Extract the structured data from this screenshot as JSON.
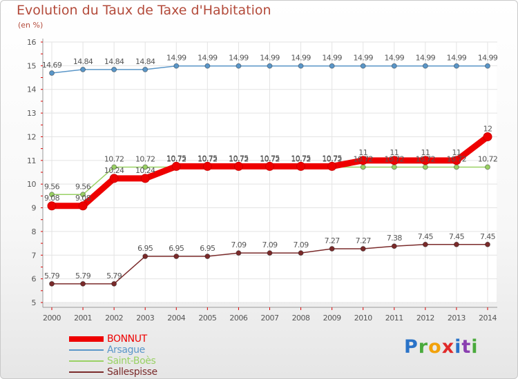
{
  "colors": {
    "title": "#b34a3a",
    "axis": "#999999",
    "tick": "#dd0000",
    "grid": "#e3e3e3",
    "label": "#555555"
  },
  "logo": {
    "letters": [
      "P",
      "r",
      "o",
      "x",
      "i",
      "t",
      "i"
    ],
    "colors": [
      "#2a73c8",
      "#4aaa3c",
      "#f2a20c",
      "#e02a2a",
      "#2a73c8",
      "#8a3fb0",
      "#4aaa3c"
    ]
  },
  "chart_data": {
    "type": "line",
    "title": "Evolution du Taux de Taxe d'Habitation",
    "subtitle": "(en %)",
    "xlabel": "",
    "ylabel": "",
    "ylim": [
      5,
      16
    ],
    "y_ticks": [
      5,
      6,
      7,
      8,
      9,
      10,
      11,
      12,
      13,
      14,
      15,
      16
    ],
    "grid": true,
    "legend_position": "bottom-left",
    "categories": [
      "2000",
      "2001",
      "2002",
      "2003",
      "2004",
      "2005",
      "2006",
      "2007",
      "2008",
      "2009",
      "2010",
      "2011",
      "2012",
      "2013",
      "2014"
    ],
    "series": [
      {
        "name": "BONNUT",
        "color": "#ee0000",
        "thick": true,
        "values": [
          9.08,
          9.08,
          10.24,
          10.24,
          10.75,
          10.75,
          10.75,
          10.75,
          10.75,
          10.75,
          11,
          11,
          11,
          11,
          12
        ],
        "labels": [
          "9.08",
          "9.08",
          "10.24",
          "10.24",
          "10.75",
          "10.75",
          "10.75",
          "10.75",
          "10.75",
          "10.75",
          "11",
          "11",
          "11",
          "11",
          "12"
        ]
      },
      {
        "name": "Arsague",
        "color": "#5a96c8",
        "thick": false,
        "values": [
          14.69,
          14.84,
          14.84,
          14.84,
          14.99,
          14.99,
          14.99,
          14.99,
          14.99,
          14.99,
          14.99,
          14.99,
          14.99,
          14.99,
          14.99
        ],
        "labels": [
          "14.69",
          "14.84",
          "14.84",
          "14.84",
          "14.99",
          "14.99",
          "14.99",
          "14.99",
          "14.99",
          "14.99",
          "14.99",
          "14.99",
          "14.99",
          "14.99",
          "14.99"
        ]
      },
      {
        "name": "Saint-Boès",
        "color": "#99d164",
        "thick": false,
        "values": [
          9.56,
          9.56,
          10.72,
          10.72,
          10.72,
          10.72,
          10.72,
          10.72,
          10.72,
          10.72,
          10.72,
          10.72,
          10.72,
          10.72,
          10.72
        ],
        "labels": [
          "9.56",
          "9.56",
          "10.72",
          "10.72",
          "10.72",
          "10.72",
          "10.72",
          "10.72",
          "10.72",
          "10.72",
          "10.72",
          "10.72",
          "10.72",
          "10.72",
          "10.72"
        ]
      },
      {
        "name": "Sallespisse",
        "color": "#7a2a2a",
        "thick": false,
        "values": [
          5.79,
          5.79,
          5.79,
          6.95,
          6.95,
          6.95,
          7.09,
          7.09,
          7.09,
          7.27,
          7.27,
          7.38,
          7.45,
          7.45,
          7.45
        ],
        "labels": [
          "5.79",
          "5.79",
          "5.79",
          "6.95",
          "6.95",
          "6.95",
          "7.09",
          "7.09",
          "7.09",
          "7.27",
          "7.27",
          "7.38",
          "7.45",
          "7.45",
          "7.45"
        ]
      }
    ]
  }
}
